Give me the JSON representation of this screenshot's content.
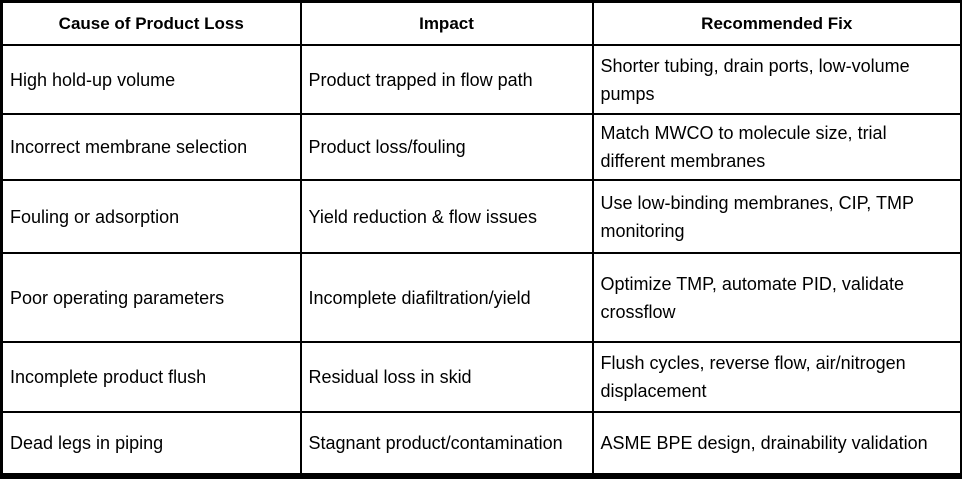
{
  "colors": {
    "border": "#000000",
    "text": "#000000",
    "background": "#ffffff"
  },
  "table": {
    "headers": {
      "cause": "Cause of Product Loss",
      "impact": "Impact",
      "fix": "Recommended Fix"
    },
    "rows": [
      {
        "cause": "High hold-up volume",
        "impact": "Product trapped in flow path",
        "fix": "Shorter tubing, drain ports, low-volume pumps"
      },
      {
        "cause": "Incorrect membrane selection",
        "impact": "Product loss/fouling",
        "fix": "Match MWCO to molecule size, trial different membranes"
      },
      {
        "cause": "Fouling or adsorption",
        "impact": "Yield reduction & flow issues",
        "fix": "Use low-binding membranes, CIP, TMP monitoring"
      },
      {
        "cause": "Poor operating parameters",
        "impact": "Incomplete diafiltration/yield",
        "fix": "Optimize TMP, automate PID, validate crossflow"
      },
      {
        "cause": "Incomplete product flush",
        "impact": "Residual loss in skid",
        "fix": "Flush cycles, reverse flow, air/nitrogen displacement"
      },
      {
        "cause": "Dead legs in piping",
        "impact": "Stagnant product/contamination",
        "fix": "ASME BPE design, drainability validation"
      }
    ]
  }
}
